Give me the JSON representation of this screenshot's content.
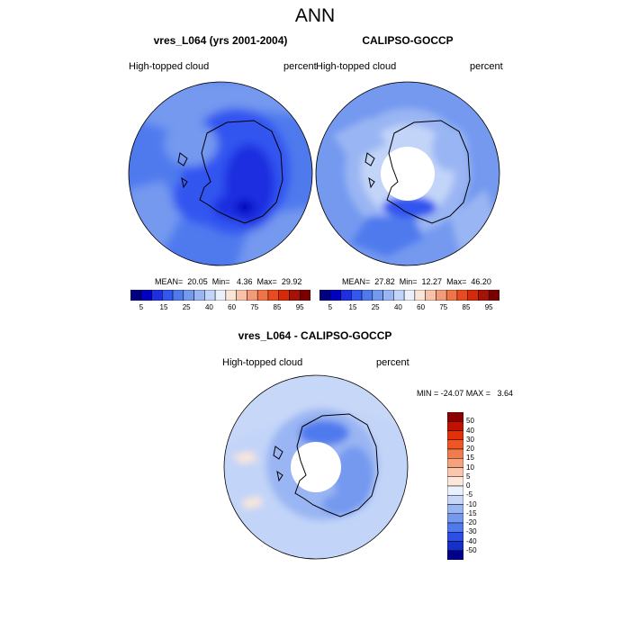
{
  "title": "ANN",
  "panels": [
    {
      "title": "vres_L064 (yrs 2001-2004)",
      "left_label": "High-topped cloud",
      "right_label": "percent",
      "stats": "MEAN=  20.05  Min=   4.36  Max=  29.92"
    },
    {
      "title": "CALIPSO-GOCCP",
      "left_label": "High-topped cloud",
      "right_label": "percent",
      "stats": "MEAN=  27.82  Min=  12.27  Max=  46.20"
    },
    {
      "title": "vres_L064 - CALIPSO-GOCCP",
      "left_label": "High-topped cloud",
      "right_label": "percent",
      "stats": "MIN = -24.07 MAX =   3.64"
    }
  ],
  "colorbar_abs": {
    "colors": [
      "#00007f",
      "#0000c0",
      "#1f2fe0",
      "#3355f0",
      "#4f7aee",
      "#7499ef",
      "#9ab5f3",
      "#c2d4f8",
      "#eaf0fc",
      "#fbe4d8",
      "#f8c2a8",
      "#f29b78",
      "#ef7447",
      "#ea4a1f",
      "#d42a0a",
      "#a51206",
      "#7a0000"
    ],
    "labels": [
      "5",
      "15",
      "25",
      "40",
      "60",
      "75",
      "85",
      "95"
    ]
  },
  "colorbar_diff": {
    "colors": [
      "#8b0000",
      "#c11100",
      "#e2300a",
      "#f05524",
      "#f27b4c",
      "#f7a07c",
      "#fac6ad",
      "#fde6da",
      "#eaf0fc",
      "#c7d7f8",
      "#9ab5f3",
      "#7499ef",
      "#4f7aee",
      "#2c4fe6",
      "#1530c8",
      "#00008b"
    ],
    "labels": [
      "50",
      "40",
      "30",
      "20",
      "15",
      "10",
      "5",
      "0",
      "-5",
      "-10",
      "-15",
      "-20",
      "-30",
      "-40",
      "-50"
    ]
  },
  "chart_data": [
    {
      "type": "heatmap",
      "title": "vres_L064 (yrs 2001-2004)",
      "projection": "south polar stereographic",
      "variable": "High-topped cloud",
      "units": "percent",
      "mean": 20.05,
      "min": 4.36,
      "max": 29.92,
      "levels": [
        5,
        10,
        15,
        20,
        25,
        30,
        40,
        50,
        60,
        70,
        75,
        80,
        85,
        90,
        95
      ]
    },
    {
      "type": "heatmap",
      "title": "CALIPSO-GOCCP",
      "projection": "south polar stereographic",
      "variable": "High-topped cloud",
      "units": "percent",
      "mean": 27.82,
      "min": 12.27,
      "max": 46.2,
      "levels": [
        5,
        10,
        15,
        20,
        25,
        30,
        40,
        50,
        60,
        70,
        75,
        80,
        85,
        90,
        95
      ]
    },
    {
      "type": "heatmap",
      "title": "vres_L064 - CALIPSO-GOCCP",
      "projection": "south polar stereographic",
      "variable": "High-topped cloud",
      "units": "percent",
      "min": -24.07,
      "max": 3.64,
      "levels": [
        -50,
        -40,
        -30,
        -20,
        -15,
        -10,
        -5,
        0,
        5,
        10,
        15,
        20,
        30,
        40,
        50
      ]
    }
  ]
}
